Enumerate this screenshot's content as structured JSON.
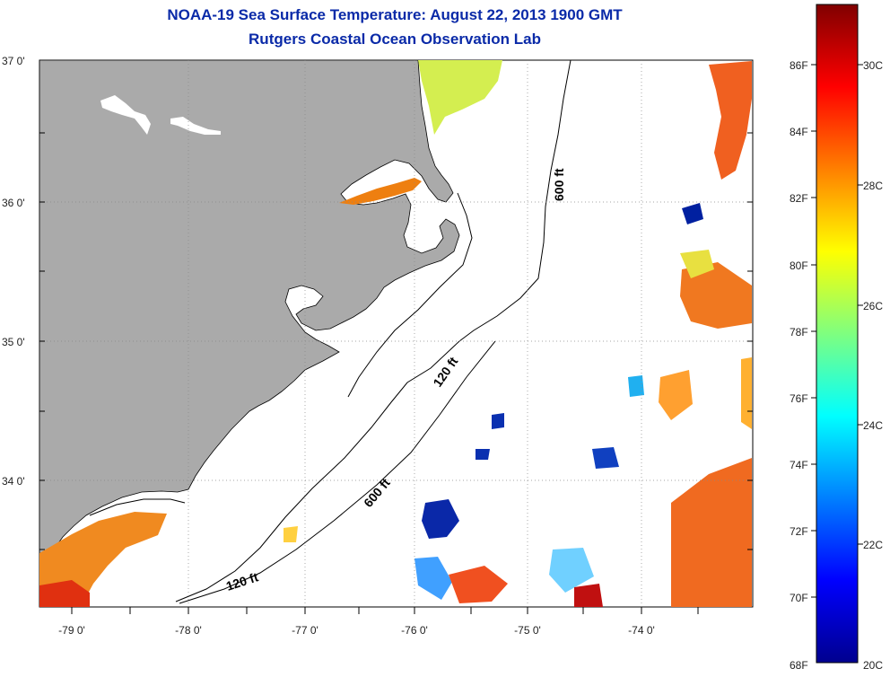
{
  "title": "NOAA-19 Sea Surface Temperature:  August 22, 2013 1900 GMT",
  "subtitle": "Rutgers Coastal Ocean Observation Lab",
  "map": {
    "lat_labels": [
      "37 0'",
      "36 0'",
      "35 0'",
      "34 0'"
    ],
    "lon_labels": [
      "-79 0'",
      "-78 0'",
      "-77 0'",
      "-76 0'",
      "-75 0'",
      "-74 0'"
    ],
    "depth_labels": [
      "600 ft",
      "120 ft",
      "600 ft",
      "120 ft"
    ],
    "land_color": "#aaaaaa",
    "water_color": "#ffffff"
  },
  "colorbar": {
    "f_labels": [
      "86F",
      "84F",
      "82F",
      "80F",
      "78F",
      "76F",
      "74F",
      "72F",
      "70F",
      "68F"
    ],
    "c_labels": [
      "30C",
      "28C",
      "26C",
      "24C",
      "22C",
      "20C"
    ],
    "colormap": "jet",
    "range_c": [
      20,
      31
    ]
  }
}
